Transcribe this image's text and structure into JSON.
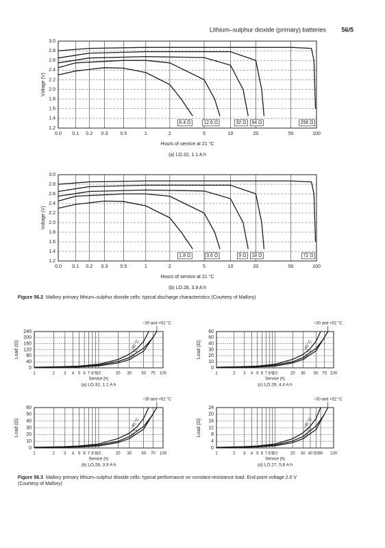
{
  "header": {
    "title": "Lithium–sulphur dioxide (primary) batteries",
    "page": "56/5"
  },
  "figures": [
    {
      "label": "Figure 56.2",
      "lines": [
        "Mallory primary lithium–sulphur dioxide cells: typical discharge characteristics (Courtesy of Mallory)"
      ]
    },
    {
      "label": "Figure 56.3",
      "lines": [
        "Mallory primary lithium–sulphur dioxide cells: typical performance on constant-resistance load. End-point voltage 2.0 V",
        "(Courtesy of Mallory)"
      ]
    }
  ],
  "chart_data": [
    {
      "type": "line",
      "subtitle": "(a) LO.32, 1.1 A h",
      "xlabel": "Hours of service at 21 °C",
      "ylabel": "Voltage (V)",
      "color": "#1a1a1a",
      "grid": true,
      "xlim": [
        0,
        100
      ],
      "ylim": [
        1.2,
        3
      ],
      "xticks": [
        {
          "value": 0,
          "label": "0.0"
        },
        0.1,
        0.2,
        0.3,
        0.5,
        1,
        2,
        5,
        10,
        20,
        50,
        100
      ],
      "yticks": [
        1.2,
        1.4,
        1.6,
        1.8,
        {
          "value": 2,
          "label": "2.0"
        },
        2.2,
        2.4,
        2.6,
        2.8,
        {
          "value": 3,
          "label": "3.0"
        }
      ],
      "series": [
        {
          "name": "6.4 Ω",
          "x": [
            0,
            0.1,
            0.3,
            0.5,
            1,
            2,
            3,
            4
          ],
          "values": [
            2.3,
            2.38,
            2.45,
            2.44,
            2.35,
            2.1,
            1.8,
            1.45
          ]
        },
        {
          "name": "12.6 Ω",
          "x": [
            0,
            0.1,
            0.5,
            1,
            2,
            5,
            7,
            8
          ],
          "values": [
            2.45,
            2.55,
            2.6,
            2.6,
            2.55,
            2.2,
            1.8,
            1.45
          ]
        },
        {
          "name": "32 Ω",
          "x": [
            0,
            0.2,
            1,
            5,
            10,
            15,
            17
          ],
          "values": [
            2.55,
            2.65,
            2.68,
            2.66,
            2.5,
            2,
            1.45
          ]
        },
        {
          "name": "64 Ω",
          "x": [
            0,
            0.2,
            1,
            10,
            20,
            25,
            27
          ],
          "values": [
            2.65,
            2.75,
            2.78,
            2.78,
            2.6,
            2,
            1.45
          ]
        },
        {
          "name": "256 Ω",
          "x": [
            0,
            0.2,
            1,
            50,
            90,
            95,
            98
          ],
          "values": [
            2.8,
            2.85,
            2.87,
            2.87,
            2.85,
            2.6,
            1.6
          ]
        }
      ]
    },
    {
      "type": "line",
      "subtitle": "(b) LO.28, 3.9 A h",
      "xlabel": "Hours of service at 21 °C",
      "ylabel": "Voltage (V)",
      "color": "#1a1a1a",
      "grid": true,
      "xlim": [
        0,
        100
      ],
      "ylim": [
        1.2,
        3
      ],
      "xticks": [
        {
          "value": 0,
          "label": "0.0"
        },
        0.1,
        0.2,
        0.3,
        0.5,
        1,
        2,
        5,
        10,
        20,
        50,
        100
      ],
      "yticks": [
        1.2,
        1.4,
        1.6,
        1.8,
        {
          "value": 2,
          "label": "2.0"
        },
        2.2,
        2.4,
        2.6,
        2.8,
        {
          "value": 3,
          "label": "3.0"
        }
      ],
      "series": [
        {
          "name": "1.8 Ω",
          "x": [
            0,
            0.1,
            0.3,
            0.5,
            1,
            2,
            3,
            4
          ],
          "values": [
            2.3,
            2.38,
            2.45,
            2.44,
            2.35,
            2.1,
            1.8,
            1.45
          ]
        },
        {
          "name": "3.6 Ω",
          "x": [
            0,
            0.1,
            0.5,
            1,
            2,
            5,
            7,
            8
          ],
          "values": [
            2.45,
            2.55,
            2.6,
            2.6,
            2.55,
            2.2,
            1.8,
            1.45
          ]
        },
        {
          "name": "9 Ω",
          "x": [
            0,
            0.2,
            1,
            5,
            10,
            15,
            17
          ],
          "values": [
            2.55,
            2.65,
            2.68,
            2.66,
            2.5,
            2,
            1.45
          ]
        },
        {
          "name": "18 Ω",
          "x": [
            0,
            0.2,
            1,
            10,
            20,
            25,
            27
          ],
          "values": [
            2.65,
            2.75,
            2.78,
            2.78,
            2.6,
            2,
            1.45
          ]
        },
        {
          "name": "72 Ω",
          "x": [
            0,
            0.2,
            1,
            50,
            90,
            95,
            98
          ],
          "values": [
            2.8,
            2.85,
            2.87,
            2.87,
            2.85,
            2.6,
            1.6
          ]
        }
      ]
    },
    {
      "type": "line",
      "subtitle": "(a) LO.32, 1.1 A h",
      "xlabel": "Service (h)",
      "ylabel": "Load (Ω)",
      "color": "#1a1a1a",
      "grid": true,
      "xscale": "log",
      "xlim": [
        1,
        100
      ],
      "ylim": [
        0,
        240
      ],
      "xticks": [
        1,
        2,
        3,
        4,
        5,
        6,
        7,
        8,
        9,
        10,
        20,
        30,
        50,
        70,
        100
      ],
      "yticks": [
        0,
        40,
        80,
        120,
        160,
        200,
        240
      ],
      "series": [
        {
          "name": "−40 °C",
          "x": [
            1,
            3,
            5,
            10,
            20,
            30,
            40,
            50,
            60
          ],
          "values": [
            4,
            8,
            12,
            24,
            55,
            90,
            130,
            175,
            240
          ]
        },
        {
          "name": "+21 °C",
          "x": [
            1,
            3,
            5,
            10,
            20,
            30,
            50,
            70
          ],
          "values": [
            3,
            6,
            9,
            18,
            42,
            68,
            130,
            200
          ]
        },
        {
          "name": "−30 and +52 °C",
          "x": [
            1,
            3,
            5,
            10,
            20,
            30,
            50,
            80
          ],
          "values": [
            2,
            4,
            6,
            13,
            32,
            55,
            110,
            240
          ]
        }
      ]
    },
    {
      "type": "line",
      "subtitle": "(b) LO.28, 3.9 A h",
      "xlabel": "Service (h)",
      "ylabel": "Load (Ω)",
      "color": "#1a1a1a",
      "grid": true,
      "xscale": "log",
      "xlim": [
        1,
        100
      ],
      "ylim": [
        0,
        60
      ],
      "xticks": [
        1,
        2,
        3,
        4,
        5,
        6,
        7,
        8,
        9,
        10,
        20,
        30,
        50,
        70,
        100
      ],
      "yticks": [
        0,
        10,
        20,
        30,
        40,
        50,
        60
      ],
      "series": [
        {
          "name": "−40 °C",
          "x": [
            1,
            3,
            5,
            10,
            20,
            30,
            40,
            50,
            60
          ],
          "values": [
            1,
            2,
            3,
            6,
            14,
            22,
            32,
            44,
            60
          ]
        },
        {
          "name": "+21 °C",
          "x": [
            1,
            3,
            5,
            10,
            20,
            30,
            50,
            70
          ],
          "values": [
            1,
            1.5,
            2.2,
            4.5,
            10,
            17,
            32,
            50
          ]
        },
        {
          "name": "−30 and +52 °C",
          "x": [
            1,
            3,
            5,
            10,
            20,
            30,
            50,
            80
          ],
          "values": [
            0.5,
            1,
            1.5,
            3,
            8,
            14,
            28,
            60
          ]
        }
      ]
    },
    {
      "type": "line",
      "subtitle": "(c) LO.29, 4.4 A h",
      "xlabel": "Service (h)",
      "ylabel": "Load (Ω)",
      "color": "#1a1a1a",
      "grid": true,
      "xscale": "log",
      "xlim": [
        1,
        100
      ],
      "ylim": [
        0,
        60
      ],
      "xticks": [
        1,
        2,
        3,
        4,
        5,
        6,
        7,
        8,
        9,
        10,
        20,
        30,
        50,
        70,
        100
      ],
      "yticks": [
        0,
        10,
        20,
        30,
        40,
        50,
        60
      ],
      "series": [
        {
          "name": "−40 °C",
          "x": [
            1,
            3,
            5,
            10,
            20,
            30,
            40,
            50,
            60
          ],
          "values": [
            1,
            2,
            3,
            6,
            14,
            22,
            32,
            44,
            60
          ]
        },
        {
          "name": "+21 °C",
          "x": [
            1,
            3,
            5,
            10,
            20,
            30,
            50,
            70
          ],
          "values": [
            1,
            1.5,
            2.2,
            4.5,
            10,
            17,
            32,
            50
          ]
        },
        {
          "name": "−30 and +52 °C",
          "x": [
            1,
            3,
            5,
            10,
            20,
            30,
            50,
            80
          ],
          "values": [
            0.5,
            1,
            1.5,
            3,
            8,
            14,
            28,
            60
          ]
        }
      ]
    },
    {
      "type": "line",
      "subtitle": "(d) LO.27, 5.8 A h",
      "xlabel": "Service (h)",
      "ylabel": "Load (Ω)",
      "color": "#1a1a1a",
      "grid": true,
      "xscale": "log",
      "xlim": [
        1,
        100
      ],
      "ylim": [
        0,
        24
      ],
      "xticks": [
        1,
        2,
        3,
        4,
        5,
        6,
        7,
        8,
        9,
        10,
        20,
        30,
        40,
        50,
        60,
        100
      ],
      "yticks": [
        0,
        4,
        8,
        12,
        16,
        20,
        24
      ],
      "series": [
        {
          "name": "−40 °C",
          "x": [
            1,
            3,
            5,
            10,
            20,
            30,
            40,
            50,
            60
          ],
          "values": [
            0.4,
            0.8,
            1.2,
            2.4,
            5.5,
            9,
            13,
            17.5,
            24
          ]
        },
        {
          "name": "+21 °C",
          "x": [
            1,
            3,
            5,
            10,
            20,
            30,
            50,
            70
          ],
          "values": [
            0.3,
            0.6,
            0.9,
            1.8,
            4.2,
            6.8,
            13,
            20
          ]
        },
        {
          "name": "−30 and +52 °C",
          "x": [
            1,
            3,
            5,
            10,
            20,
            30,
            50,
            80
          ],
          "values": [
            0.2,
            0.4,
            0.6,
            1.3,
            3.2,
            5.5,
            11,
            24
          ]
        }
      ]
    }
  ]
}
